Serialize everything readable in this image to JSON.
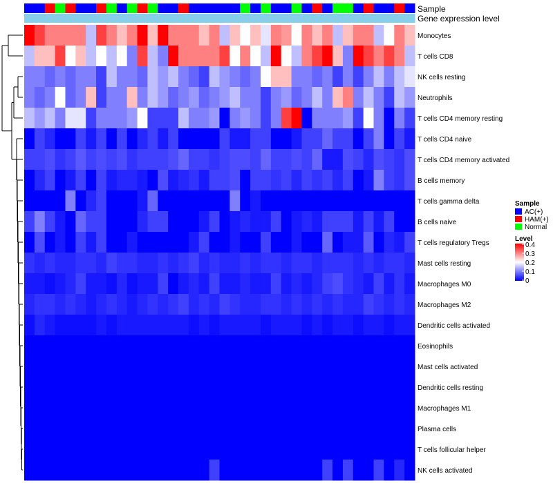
{
  "chart_data": {
    "type": "heatmap",
    "title": "",
    "annotation_rows": [
      {
        "label": "Sample"
      },
      {
        "label": "Gene expression level"
      }
    ],
    "sample_groups": [
      {
        "name": "AC(+)",
        "color": "#0000ff"
      },
      {
        "name": "HAM(+)",
        "color": "#ff0000"
      },
      {
        "name": "Normal",
        "color": "#00ff00"
      }
    ],
    "samples": [
      "AC(+)",
      "AC(+)",
      "HAM(+)",
      "Normal",
      "HAM(+)",
      "AC(+)",
      "AC(+)",
      "HAM(+)",
      "Normal",
      "AC(+)",
      "Normal",
      "HAM(+)",
      "Normal",
      "AC(+)",
      "AC(+)",
      "HAM(+)",
      "AC(+)",
      "AC(+)",
      "AC(+)",
      "AC(+)",
      "AC(+)",
      "Normal",
      "AC(+)",
      "Normal",
      "AC(+)",
      "AC(+)",
      "Normal",
      "AC(+)",
      "HAM(+)",
      "AC(+)",
      "Normal",
      "Normal",
      "AC(+)",
      "HAM(+)",
      "AC(+)",
      "AC(+)",
      "HAM(+)",
      "AC(+)"
    ],
    "expression_annotation_color": "#87ceeb",
    "rows": [
      {
        "label": "Monocytes",
        "values": [
          0.4,
          0.35,
          0.3,
          0.3,
          0.3,
          0.3,
          0.15,
          0.35,
          0.3,
          0.25,
          0.3,
          0.4,
          0.25,
          0.4,
          0.3,
          0.3,
          0.3,
          0.25,
          0.3,
          0.15,
          0.25,
          0.2,
          0.25,
          0.18,
          0.3,
          0.28,
          0.2,
          0.3,
          0.25,
          0.3,
          0.15,
          0.25,
          0.3,
          0.3,
          0.15,
          0.2,
          0.3,
          0.25
        ]
      },
      {
        "label": "T cells CD8",
        "values": [
          0.15,
          0.25,
          0.25,
          0.35,
          0.2,
          0.25,
          0.15,
          0.2,
          0.15,
          0.2,
          0.1,
          0.35,
          0.15,
          0.1,
          0.4,
          0.3,
          0.3,
          0.3,
          0.3,
          0.35,
          0.2,
          0.3,
          0.2,
          0.15,
          0.4,
          0.2,
          0.15,
          0.3,
          0.35,
          0.4,
          0.25,
          0.1,
          0.4,
          0.35,
          0.3,
          0.35,
          0.3,
          0.15
        ]
      },
      {
        "label": "NK cells resting",
        "values": [
          0.1,
          0.1,
          0.08,
          0.1,
          0.08,
          0.1,
          0.1,
          0.05,
          0.15,
          0.1,
          0.1,
          0.08,
          0.15,
          0.12,
          0.15,
          0.1,
          0.08,
          0.05,
          0.15,
          0.12,
          0.1,
          0.08,
          0.1,
          0.2,
          0.25,
          0.25,
          0.1,
          0.1,
          0.08,
          0.1,
          0.05,
          0.1,
          0.05,
          0.1,
          0.15,
          0.1,
          0.15,
          0.18
        ]
      },
      {
        "label": "Neutrophils",
        "values": [
          0.1,
          0.08,
          0.1,
          0.2,
          0.08,
          0.1,
          0.25,
          0.05,
          0.1,
          0.1,
          0.25,
          0.1,
          0.15,
          0.12,
          0.08,
          0.1,
          0.12,
          0.08,
          0.1,
          0.12,
          0.15,
          0.1,
          0.1,
          0.05,
          0.1,
          0.12,
          0.08,
          0.1,
          0.15,
          0.1,
          0.25,
          0.3,
          0.1,
          0.15,
          0.1,
          0.05,
          0.15,
          0.12
        ]
      },
      {
        "label": "T cells CD4 memory resting",
        "values": [
          0.15,
          0.12,
          0.15,
          0.1,
          0.18,
          0.18,
          0.05,
          0.1,
          0.1,
          0.1,
          0.12,
          0.2,
          0.05,
          0.05,
          0.05,
          0.15,
          0.1,
          0.1,
          0.12,
          0,
          0.1,
          0.12,
          0.1,
          0.05,
          0.1,
          0.35,
          0.45,
          0,
          0.1,
          0.1,
          0.1,
          0.12,
          0.05,
          0.2,
          0.1,
          0,
          0.1,
          0.05
        ]
      },
      {
        "label": "T cells CD4 naive",
        "values": [
          0,
          0.05,
          0.03,
          0,
          0,
          0.05,
          0.02,
          0.05,
          0,
          0.05,
          0,
          0.03,
          0.05,
          0.02,
          0.05,
          0,
          0,
          0,
          0,
          0.05,
          0.02,
          0.02,
          0.05,
          0.05,
          0,
          0,
          0.02,
          0.05,
          0.05,
          0.08,
          0.05,
          0.05,
          0,
          0.05,
          0.1,
          0,
          0.05,
          0.02
        ]
      },
      {
        "label": "T cells CD4 memory activated",
        "values": [
          0.05,
          0.05,
          0.06,
          0.04,
          0.05,
          0.07,
          0.05,
          0.06,
          0.05,
          0.06,
          0.04,
          0.05,
          0.05,
          0.05,
          0.06,
          0.08,
          0.05,
          0.05,
          0.04,
          0.05,
          0.06,
          0.06,
          0.05,
          0.08,
          0.05,
          0.05,
          0.06,
          0.05,
          0.08,
          0.02,
          0.02,
          0.06,
          0.05,
          0.03,
          0.06,
          0.05,
          0.04,
          0.06
        ]
      },
      {
        "label": "B cells memory",
        "values": [
          0,
          0.03,
          0.05,
          0,
          0.02,
          0.05,
          0,
          0.05,
          0.02,
          0.03,
          0.03,
          0.02,
          0,
          0.06,
          0.02,
          0.03,
          0.04,
          0.02,
          0.05,
          0.05,
          0.06,
          0,
          0.05,
          0.05,
          0.04,
          0.05,
          0.03,
          0.05,
          0.04,
          0.05,
          0.03,
          0.05,
          0,
          0.02,
          0.1,
          0.05,
          0.04,
          0.06
        ]
      },
      {
        "label": "T cells gamma delta",
        "values": [
          0,
          0,
          0,
          0,
          0.1,
          0,
          0.03,
          0.05,
          0,
          0,
          0,
          0.02,
          0.08,
          0,
          0,
          0,
          0,
          0,
          0,
          0,
          0.1,
          0,
          0.02,
          0,
          0,
          0,
          0,
          0,
          0,
          0,
          0,
          0,
          0,
          0,
          0,
          0,
          0,
          0
        ]
      },
      {
        "label": "B cells naive",
        "values": [
          0.05,
          0.1,
          0.05,
          0.02,
          0,
          0.08,
          0.05,
          0.05,
          0,
          0,
          0,
          0.03,
          0.05,
          0.05,
          0,
          0,
          0,
          0.02,
          0.05,
          0,
          0.02,
          0.03,
          0.02,
          0.02,
          0.05,
          0,
          0.02,
          0.03,
          0.02,
          0.05,
          0.05,
          0.05,
          0.02,
          0.05,
          0.02,
          0.05,
          0,
          0
        ]
      },
      {
        "label": "T cells regulatory  Tregs",
        "values": [
          0,
          0.06,
          0,
          0.02,
          0,
          0.05,
          0.02,
          0.05,
          0,
          0,
          0.02,
          0,
          0,
          0,
          0,
          0,
          0.02,
          0.05,
          0,
          0,
          0.02,
          0,
          0,
          0.05,
          0,
          0,
          0.02,
          0,
          0,
          0.08,
          0,
          0.02,
          0.02,
          0.07,
          0,
          0.03,
          0.02,
          0.05
        ]
      },
      {
        "label": "Mast cells resting",
        "values": [
          0.04,
          0.03,
          0.04,
          0.03,
          0.03,
          0.04,
          0.04,
          0.03,
          0.05,
          0.04,
          0.04,
          0.03,
          0.03,
          0.04,
          0.03,
          0.04,
          0.05,
          0.03,
          0.04,
          0.03,
          0.03,
          0.04,
          0.03,
          0.04,
          0.04,
          0.03,
          0.04,
          0.04,
          0.03,
          0.04,
          0.04,
          0.04,
          0.03,
          0.04,
          0.03,
          0.04,
          0.04,
          0.03
        ]
      },
      {
        "label": "Macrophages M0",
        "values": [
          0.02,
          0.02,
          0.01,
          0.02,
          0.03,
          0.05,
          0.02,
          0.02,
          0.01,
          0.03,
          0.01,
          0.02,
          0.02,
          0.05,
          0,
          0.02,
          0.03,
          0.02,
          0.05,
          0.02,
          0.02,
          0.03,
          0.02,
          0.02,
          0.05,
          0.02,
          0.03,
          0.02,
          0.03,
          0.05,
          0.06,
          0.04,
          0.03,
          0.02,
          0.05,
          0.02,
          0.04,
          0.02
        ]
      },
      {
        "label": "Macrophages M2",
        "values": [
          0.03,
          0.04,
          0.04,
          0.03,
          0.04,
          0.03,
          0.02,
          0.03,
          0.04,
          0.03,
          0.02,
          0.03,
          0.04,
          0.03,
          0.04,
          0.05,
          0.03,
          0.04,
          0.03,
          0.05,
          0.04,
          0.03,
          0.03,
          0.04,
          0.04,
          0.03,
          0.04,
          0.03,
          0.04,
          0.03,
          0.04,
          0.03,
          0.03,
          0.05,
          0.04,
          0.03,
          0.04,
          0.03
        ]
      },
      {
        "label": "Dendritic cells activated",
        "values": [
          0.01,
          0.03,
          0.02,
          0.01,
          0.01,
          0.01,
          0.01,
          0.02,
          0.01,
          0.02,
          0.02,
          0.02,
          0.02,
          0.02,
          0.02,
          0.02,
          0.01,
          0.02,
          0.01,
          0.02,
          0.02,
          0.02,
          0.02,
          0.01,
          0.02,
          0.02,
          0.02,
          0.01,
          0.02,
          0.01,
          0.02,
          0.02,
          0.01,
          0.02,
          0.02,
          0.01,
          0.02,
          0.02
        ]
      },
      {
        "label": "Eosinophils",
        "values": [
          0,
          0,
          0,
          0,
          0,
          0,
          0,
          0,
          0,
          0,
          0,
          0,
          0,
          0,
          0,
          0,
          0,
          0,
          0,
          0,
          0,
          0,
          0,
          0,
          0,
          0,
          0,
          0,
          0,
          0,
          0,
          0,
          0,
          0,
          0,
          0,
          0,
          0
        ]
      },
      {
        "label": "Mast cells activated",
        "values": [
          0,
          0,
          0,
          0,
          0,
          0,
          0,
          0,
          0,
          0,
          0,
          0,
          0,
          0,
          0,
          0,
          0,
          0,
          0,
          0,
          0,
          0,
          0,
          0,
          0,
          0,
          0,
          0,
          0,
          0,
          0,
          0,
          0,
          0,
          0,
          0,
          0,
          0
        ]
      },
      {
        "label": "Dendritic cells resting",
        "values": [
          0,
          0,
          0,
          0,
          0,
          0,
          0,
          0,
          0,
          0,
          0,
          0,
          0,
          0,
          0,
          0,
          0,
          0,
          0,
          0,
          0,
          0,
          0,
          0,
          0,
          0,
          0,
          0,
          0,
          0,
          0,
          0,
          0,
          0,
          0,
          0,
          0,
          0
        ]
      },
      {
        "label": "Macrophages M1",
        "values": [
          0,
          0,
          0,
          0,
          0,
          0,
          0,
          0,
          0,
          0,
          0,
          0,
          0,
          0,
          0,
          0,
          0,
          0,
          0,
          0,
          0,
          0,
          0,
          0,
          0,
          0,
          0,
          0,
          0,
          0,
          0,
          0,
          0,
          0,
          0,
          0,
          0,
          0
        ]
      },
      {
        "label": "Plasma cells",
        "values": [
          0,
          0,
          0,
          0,
          0,
          0,
          0,
          0,
          0,
          0,
          0,
          0,
          0,
          0,
          0,
          0,
          0,
          0,
          0,
          0,
          0,
          0,
          0,
          0,
          0,
          0,
          0,
          0,
          0,
          0,
          0,
          0,
          0,
          0,
          0,
          0,
          0,
          0
        ]
      },
      {
        "label": "T cells follicular helper",
        "values": [
          0,
          0,
          0,
          0,
          0,
          0,
          0,
          0,
          0,
          0,
          0,
          0,
          0,
          0,
          0,
          0,
          0,
          0,
          0,
          0,
          0,
          0,
          0,
          0,
          0,
          0,
          0,
          0,
          0,
          0,
          0,
          0,
          0,
          0,
          0,
          0,
          0,
          0
        ]
      },
      {
        "label": "NK cells activated",
        "values": [
          0,
          0,
          0,
          0,
          0,
          0,
          0,
          0,
          0,
          0,
          0,
          0,
          0,
          0,
          0,
          0,
          0,
          0,
          0.05,
          0,
          0,
          0,
          0,
          0,
          0,
          0,
          0,
          0,
          0,
          0.05,
          0,
          0.05,
          0,
          0,
          0.05,
          0,
          0.03,
          0
        ]
      }
    ],
    "legend": {
      "sample_title": "Sample",
      "level_title": "Level",
      "level_ticks": [
        "0.4",
        "0.3",
        "0.2",
        "0.1",
        "0"
      ],
      "level_range": [
        0,
        0.4
      ]
    },
    "color_scale": {
      "low": "#0000ff",
      "mid": "#ffffff",
      "high": "#ff0000",
      "mid_value": 0.2
    },
    "dendrogram": "hierarchical clustering of rows"
  }
}
